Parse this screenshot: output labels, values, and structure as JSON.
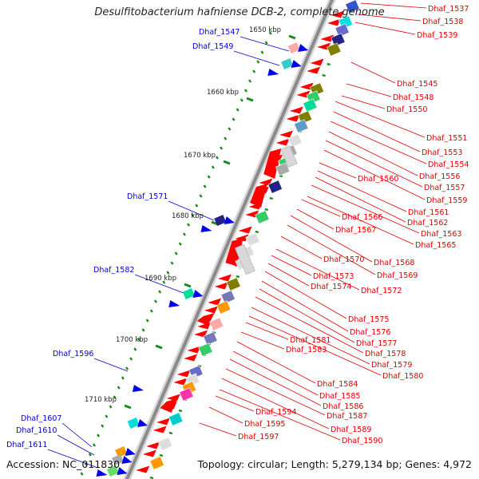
{
  "title": "Desulfitobacterium hafniense DCB-2, complete genome",
  "footer": {
    "accession": "Accession: NC_011830",
    "topology": "Topology: circular; Length: 5,279,134 bp; Genes: 4,972"
  },
  "colors": {
    "forward_label": "#0000cc",
    "reverse_label": "#dd0000",
    "tick": "#1a8a1a",
    "backbone": "#8a8a8a"
  },
  "ticks": [
    "1650 kbp",
    "1660 kbp",
    "1670 kbp",
    "1680 kbp",
    "1690 kbp",
    "1700 kbp",
    "1710 kbp"
  ],
  "forward_labels": [
    "Dhaf_1547",
    "Dhaf_1549",
    "Dhaf_1571",
    "Dhaf_1582",
    "Dhaf_1596",
    "Dhaf_1607",
    "Dhaf_1610",
    "Dhaf_1611"
  ],
  "reverse_labels": [
    "Dhaf_1537",
    "Dhaf_1538",
    "Dhaf_1539",
    "Dhaf_1545",
    "Dhaf_1548",
    "Dhaf_1550",
    "Dhaf_1551",
    "Dhaf_1553",
    "Dhaf_1554",
    "Dhaf_1556",
    "Dhaf_1557",
    "Dhaf_1559",
    "Dhaf_1560",
    "Dhaf_1561",
    "Dhaf_1562",
    "Dhaf_1563",
    "Dhaf_1565",
    "Dhaf_1566",
    "Dhaf_1567",
    "Dhaf_1568",
    "Dhaf_1569",
    "Dhaf_1570",
    "Dhaf_1572",
    "Dhaf_1573",
    "Dhaf_1574",
    "Dhaf_1575",
    "Dhaf_1576",
    "Dhaf_1577",
    "Dhaf_1578",
    "Dhaf_1579",
    "Dhaf_1580",
    "Dhaf_1581",
    "Dhaf_1583",
    "Dhaf_1584",
    "Dhaf_1585",
    "Dhaf_1586",
    "Dhaf_1587",
    "Dhaf_1589",
    "Dhaf_1590",
    "Dhaf_1594",
    "Dhaf_1595",
    "Dhaf_1597"
  ]
}
